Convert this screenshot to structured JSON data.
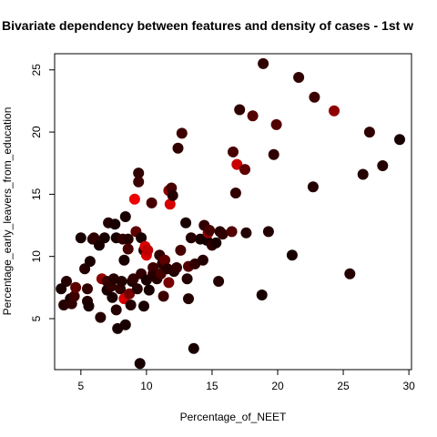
{
  "chart_data": {
    "type": "scatter",
    "title": "Bivariate dependency between features and density of cases -  1st w",
    "xlabel": "Percentage_of_NEET",
    "ylabel": "Percentage_early_leavers_from_education",
    "xlim": [
      3.0,
      30.2
    ],
    "ylim": [
      0.9,
      26.3
    ],
    "xticks": [
      5,
      10,
      15,
      20,
      25,
      30
    ],
    "yticks": [
      5,
      10,
      15,
      20,
      25
    ],
    "grid": false,
    "marker": "filled-circle",
    "color_scale": {
      "low": "#000000",
      "high": "#ee0000"
    },
    "points": [
      {
        "x": 3.5,
        "y": 7.4,
        "d": 0.1
      },
      {
        "x": 3.7,
        "y": 6.1,
        "d": 0.15
      },
      {
        "x": 3.9,
        "y": 8.0,
        "d": 0.15
      },
      {
        "x": 4.2,
        "y": 6.6,
        "d": 0.1
      },
      {
        "x": 4.3,
        "y": 6.2,
        "d": 0.2
      },
      {
        "x": 4.5,
        "y": 6.8,
        "d": 0.25
      },
      {
        "x": 4.6,
        "y": 7.5,
        "d": 0.4
      },
      {
        "x": 5.0,
        "y": 11.5,
        "d": 0.1
      },
      {
        "x": 5.3,
        "y": 9.0,
        "d": 0.15
      },
      {
        "x": 5.5,
        "y": 7.4,
        "d": 0.2
      },
      {
        "x": 5.5,
        "y": 6.4,
        "d": 0.15
      },
      {
        "x": 5.6,
        "y": 6.0,
        "d": 0.1
      },
      {
        "x": 5.7,
        "y": 9.6,
        "d": 0.1
      },
      {
        "x": 5.9,
        "y": 11.4,
        "d": 0.15
      },
      {
        "x": 6.0,
        "y": 11.5,
        "d": 0.2
      },
      {
        "x": 6.4,
        "y": 10.9,
        "d": 0.1
      },
      {
        "x": 6.5,
        "y": 5.1,
        "d": 0.15
      },
      {
        "x": 6.6,
        "y": 8.2,
        "d": 0.6
      },
      {
        "x": 6.8,
        "y": 11.5,
        "d": 0.1
      },
      {
        "x": 7.0,
        "y": 8.0,
        "d": 0.25
      },
      {
        "x": 7.0,
        "y": 7.3,
        "d": 0.1
      },
      {
        "x": 7.1,
        "y": 12.7,
        "d": 0.15
      },
      {
        "x": 7.3,
        "y": 7.6,
        "d": 0.2
      },
      {
        "x": 7.4,
        "y": 6.7,
        "d": 0.1
      },
      {
        "x": 7.5,
        "y": 8.2,
        "d": 0.15
      },
      {
        "x": 7.6,
        "y": 12.6,
        "d": 0.1
      },
      {
        "x": 7.7,
        "y": 11.5,
        "d": 0.1
      },
      {
        "x": 7.7,
        "y": 5.7,
        "d": 0.15
      },
      {
        "x": 7.8,
        "y": 4.2,
        "d": 0.1
      },
      {
        "x": 8.0,
        "y": 7.4,
        "d": 0.2
      },
      {
        "x": 8.1,
        "y": 8.0,
        "d": 0.15
      },
      {
        "x": 8.2,
        "y": 11.4,
        "d": 0.2
      },
      {
        "x": 8.3,
        "y": 9.7,
        "d": 0.1
      },
      {
        "x": 8.3,
        "y": 6.6,
        "d": 0.9
      },
      {
        "x": 8.4,
        "y": 4.5,
        "d": 0.1
      },
      {
        "x": 8.4,
        "y": 13.2,
        "d": 0.1
      },
      {
        "x": 8.6,
        "y": 11.4,
        "d": 0.15
      },
      {
        "x": 8.6,
        "y": 10.6,
        "d": 0.3
      },
      {
        "x": 8.7,
        "y": 7.0,
        "d": 0.5
      },
      {
        "x": 8.8,
        "y": 6.1,
        "d": 0.15
      },
      {
        "x": 8.9,
        "y": 8.0,
        "d": 0.1
      },
      {
        "x": 9.0,
        "y": 8.2,
        "d": 0.2
      },
      {
        "x": 9.1,
        "y": 14.6,
        "d": 1.0
      },
      {
        "x": 9.2,
        "y": 12.0,
        "d": 0.4
      },
      {
        "x": 9.3,
        "y": 7.4,
        "d": 0.15
      },
      {
        "x": 9.4,
        "y": 16.7,
        "d": 0.2
      },
      {
        "x": 9.4,
        "y": 16.0,
        "d": 0.25
      },
      {
        "x": 9.5,
        "y": 1.4,
        "d": 0.1
      },
      {
        "x": 9.6,
        "y": 11.5,
        "d": 0.1
      },
      {
        "x": 9.6,
        "y": 8.6,
        "d": 0.2
      },
      {
        "x": 9.8,
        "y": 10.5,
        "d": 0.15
      },
      {
        "x": 9.8,
        "y": 6.0,
        "d": 0.1
      },
      {
        "x": 9.9,
        "y": 10.8,
        "d": 0.9
      },
      {
        "x": 10.0,
        "y": 10.1,
        "d": 0.9
      },
      {
        "x": 10.0,
        "y": 8.1,
        "d": 0.1
      },
      {
        "x": 10.1,
        "y": 10.5,
        "d": 0.8
      },
      {
        "x": 10.2,
        "y": 7.3,
        "d": 0.1
      },
      {
        "x": 10.4,
        "y": 14.3,
        "d": 0.3
      },
      {
        "x": 10.5,
        "y": 8.6,
        "d": 0.2
      },
      {
        "x": 10.5,
        "y": 9.1,
        "d": 0.25
      },
      {
        "x": 10.6,
        "y": 8.4,
        "d": 0.15
      },
      {
        "x": 10.8,
        "y": 8.2,
        "d": 0.15
      },
      {
        "x": 11.0,
        "y": 10.1,
        "d": 0.2
      },
      {
        "x": 11.1,
        "y": 8.6,
        "d": 0.3
      },
      {
        "x": 11.2,
        "y": 9.4,
        "d": 0.2
      },
      {
        "x": 11.3,
        "y": 6.8,
        "d": 0.25
      },
      {
        "x": 11.4,
        "y": 9.7,
        "d": 0.4
      },
      {
        "x": 11.6,
        "y": 9.0,
        "d": 0.15
      },
      {
        "x": 11.7,
        "y": 15.3,
        "d": 0.6
      },
      {
        "x": 11.7,
        "y": 7.9,
        "d": 0.5
      },
      {
        "x": 11.8,
        "y": 14.2,
        "d": 0.9
      },
      {
        "x": 11.9,
        "y": 15.5,
        "d": 0.3
      },
      {
        "x": 12.0,
        "y": 14.9,
        "d": 0.15
      },
      {
        "x": 12.1,
        "y": 8.8,
        "d": 0.15
      },
      {
        "x": 12.3,
        "y": 9.1,
        "d": 0.2
      },
      {
        "x": 12.4,
        "y": 18.7,
        "d": 0.2
      },
      {
        "x": 12.6,
        "y": 10.5,
        "d": 0.3
      },
      {
        "x": 12.7,
        "y": 19.9,
        "d": 0.25
      },
      {
        "x": 13.0,
        "y": 12.7,
        "d": 0.1
      },
      {
        "x": 13.1,
        "y": 8.2,
        "d": 0.15
      },
      {
        "x": 13.2,
        "y": 6.6,
        "d": 0.15
      },
      {
        "x": 13.2,
        "y": 9.2,
        "d": 0.35
      },
      {
        "x": 13.4,
        "y": 11.5,
        "d": 0.15
      },
      {
        "x": 13.6,
        "y": 2.6,
        "d": 0.1
      },
      {
        "x": 13.7,
        "y": 9.4,
        "d": 0.2
      },
      {
        "x": 14.1,
        "y": 11.4,
        "d": 0.1
      },
      {
        "x": 14.3,
        "y": 9.7,
        "d": 0.15
      },
      {
        "x": 14.4,
        "y": 12.5,
        "d": 0.2
      },
      {
        "x": 14.6,
        "y": 11.3,
        "d": 0.1
      },
      {
        "x": 14.7,
        "y": 11.9,
        "d": 0.6
      },
      {
        "x": 14.8,
        "y": 12.1,
        "d": 0.3
      },
      {
        "x": 15.0,
        "y": 10.9,
        "d": 0.2
      },
      {
        "x": 15.3,
        "y": 11.1,
        "d": 0.1
      },
      {
        "x": 15.5,
        "y": 8.0,
        "d": 0.15
      },
      {
        "x": 15.6,
        "y": 12.0,
        "d": 0.15
      },
      {
        "x": 15.8,
        "y": 11.8,
        "d": 0.2
      },
      {
        "x": 16.5,
        "y": 12.0,
        "d": 0.35
      },
      {
        "x": 16.6,
        "y": 18.4,
        "d": 0.3
      },
      {
        "x": 16.8,
        "y": 15.1,
        "d": 0.2
      },
      {
        "x": 16.9,
        "y": 17.4,
        "d": 0.85
      },
      {
        "x": 17.1,
        "y": 21.8,
        "d": 0.2
      },
      {
        "x": 17.5,
        "y": 17.0,
        "d": 0.4
      },
      {
        "x": 17.6,
        "y": 11.9,
        "d": 0.15
      },
      {
        "x": 18.1,
        "y": 21.3,
        "d": 0.35
      },
      {
        "x": 18.8,
        "y": 6.9,
        "d": 0.1
      },
      {
        "x": 18.9,
        "y": 25.5,
        "d": 0.2
      },
      {
        "x": 19.3,
        "y": 12.0,
        "d": 0.15
      },
      {
        "x": 19.7,
        "y": 18.2,
        "d": 0.2
      },
      {
        "x": 19.9,
        "y": 20.6,
        "d": 0.35
      },
      {
        "x": 21.1,
        "y": 10.1,
        "d": 0.1
      },
      {
        "x": 21.6,
        "y": 24.4,
        "d": 0.2
      },
      {
        "x": 22.7,
        "y": 15.6,
        "d": 0.15
      },
      {
        "x": 22.8,
        "y": 22.8,
        "d": 0.25
      },
      {
        "x": 24.3,
        "y": 21.7,
        "d": 0.6
      },
      {
        "x": 25.5,
        "y": 8.6,
        "d": 0.15
      },
      {
        "x": 26.5,
        "y": 16.6,
        "d": 0.15
      },
      {
        "x": 27.0,
        "y": 20.0,
        "d": 0.2
      },
      {
        "x": 28.0,
        "y": 17.3,
        "d": 0.15
      },
      {
        "x": 29.3,
        "y": 19.4,
        "d": 0.1
      }
    ]
  }
}
